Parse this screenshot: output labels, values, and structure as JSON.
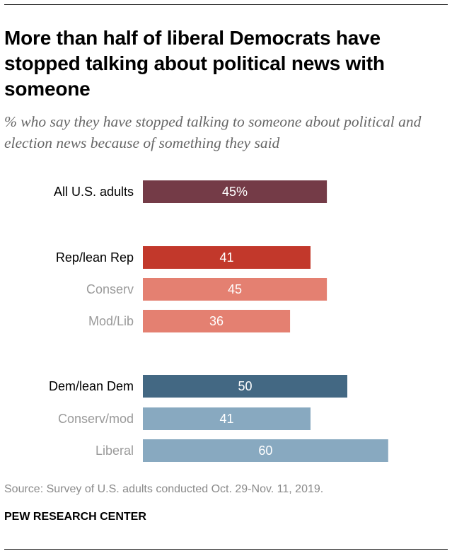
{
  "header": {
    "title": "More than half of liberal Democrats have stopped talking about political news with someone",
    "subtitle": "% who say they have stopped talking to someone about political and election news because of something they said"
  },
  "chart_data": {
    "type": "bar",
    "orientation": "horizontal",
    "categories": [
      "All U.S. adults",
      "Rep/lean Rep",
      "Conserv",
      "Mod/Lib",
      "Dem/lean Dem",
      "Conserv/mod",
      "Liberal"
    ],
    "values": [
      45,
      41,
      45,
      36,
      50,
      41,
      60
    ],
    "value_labels": [
      "45%",
      "41",
      "45",
      "36",
      "50",
      "41",
      "60"
    ],
    "groups": [
      "total",
      "rep",
      "rep",
      "rep",
      "dem",
      "dem",
      "dem"
    ],
    "levels": [
      "main",
      "main",
      "sub",
      "sub",
      "main",
      "sub",
      "sub"
    ],
    "bar_colors": [
      "#743b47",
      "#c2382b",
      "#e48071",
      "#e48071",
      "#436883",
      "#88a9c0",
      "#88a9c0"
    ],
    "label_colors": [
      "#000000",
      "#000000",
      "#9a9a9a",
      "#9a9a9a",
      "#000000",
      "#9a9a9a",
      "#9a9a9a"
    ],
    "value_label_color": "#ffffff",
    "xlim": [
      0,
      60
    ],
    "grid": false,
    "xlabel": "",
    "ylabel": ""
  },
  "footer": {
    "source": "Source: Survey of U.S. adults conducted Oct. 29-Nov. 11, 2019.",
    "brand": "PEW RESEARCH CENTER"
  }
}
